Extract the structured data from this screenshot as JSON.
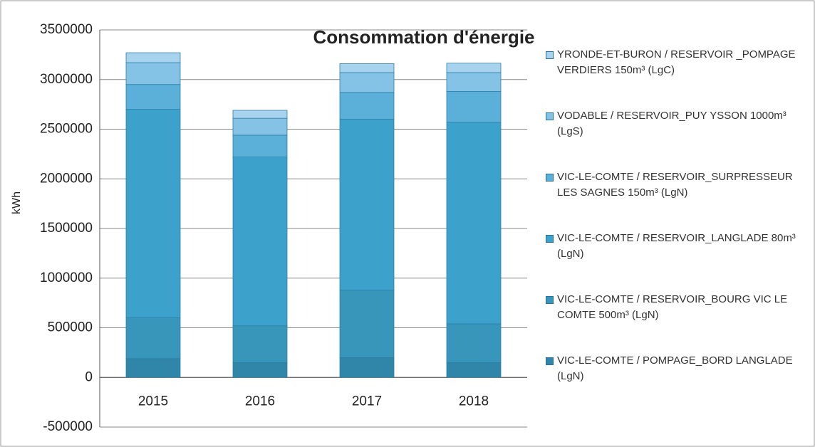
{
  "chart_data": {
    "type": "stacked_bar",
    "title": "Consommation d'énergie",
    "y_label": "kWh",
    "categories": [
      "2015",
      "2016",
      "2017",
      "2018"
    ],
    "series": [
      {
        "name": "VIC-LE-COMTE / POMPAGE_BORD LANGLADE (LgN)",
        "color": "#2f86a9",
        "values": [
          190000,
          150000,
          200000,
          150000
        ]
      },
      {
        "name": "VIC-LE-COMTE / RESERVOIR_BOURG VIC LE COMTE 500m³ (LgN)",
        "color": "#3896bb",
        "values": [
          410000,
          370000,
          680000,
          390000
        ]
      },
      {
        "name": "VIC-LE-COMTE / RESERVOIR_LANGLADE 80m³ (LgN)",
        "color": "#3ca2cb",
        "values": [
          2100000,
          1700000,
          1720000,
          2030000
        ]
      },
      {
        "name": "VIC-LE-COMTE / RESERVOIR_SURPRESSEUR LES SAGNES 150m³ (LgN)",
        "color": "#5ab0d8",
        "values": [
          250000,
          220000,
          270000,
          310000
        ]
      },
      {
        "name": "VODABLE / RESERVOIR_PUY YSSON 1000m³ (LgS)",
        "color": "#85c3e6",
        "values": [
          220000,
          170000,
          200000,
          190000
        ]
      },
      {
        "name": "YRONDE-ET-BURON / RESERVOIR _POMPAGE VERDIERS 150m³ (LgC)",
        "color": "#a8d3ee",
        "values": [
          100000,
          80000,
          90000,
          95000
        ]
      }
    ],
    "ylim": [
      -500000,
      3500000
    ],
    "yticks": [
      -500000,
      0,
      500000,
      1000000,
      1500000,
      2000000,
      2500000,
      3000000,
      3500000
    ],
    "grid": true
  }
}
